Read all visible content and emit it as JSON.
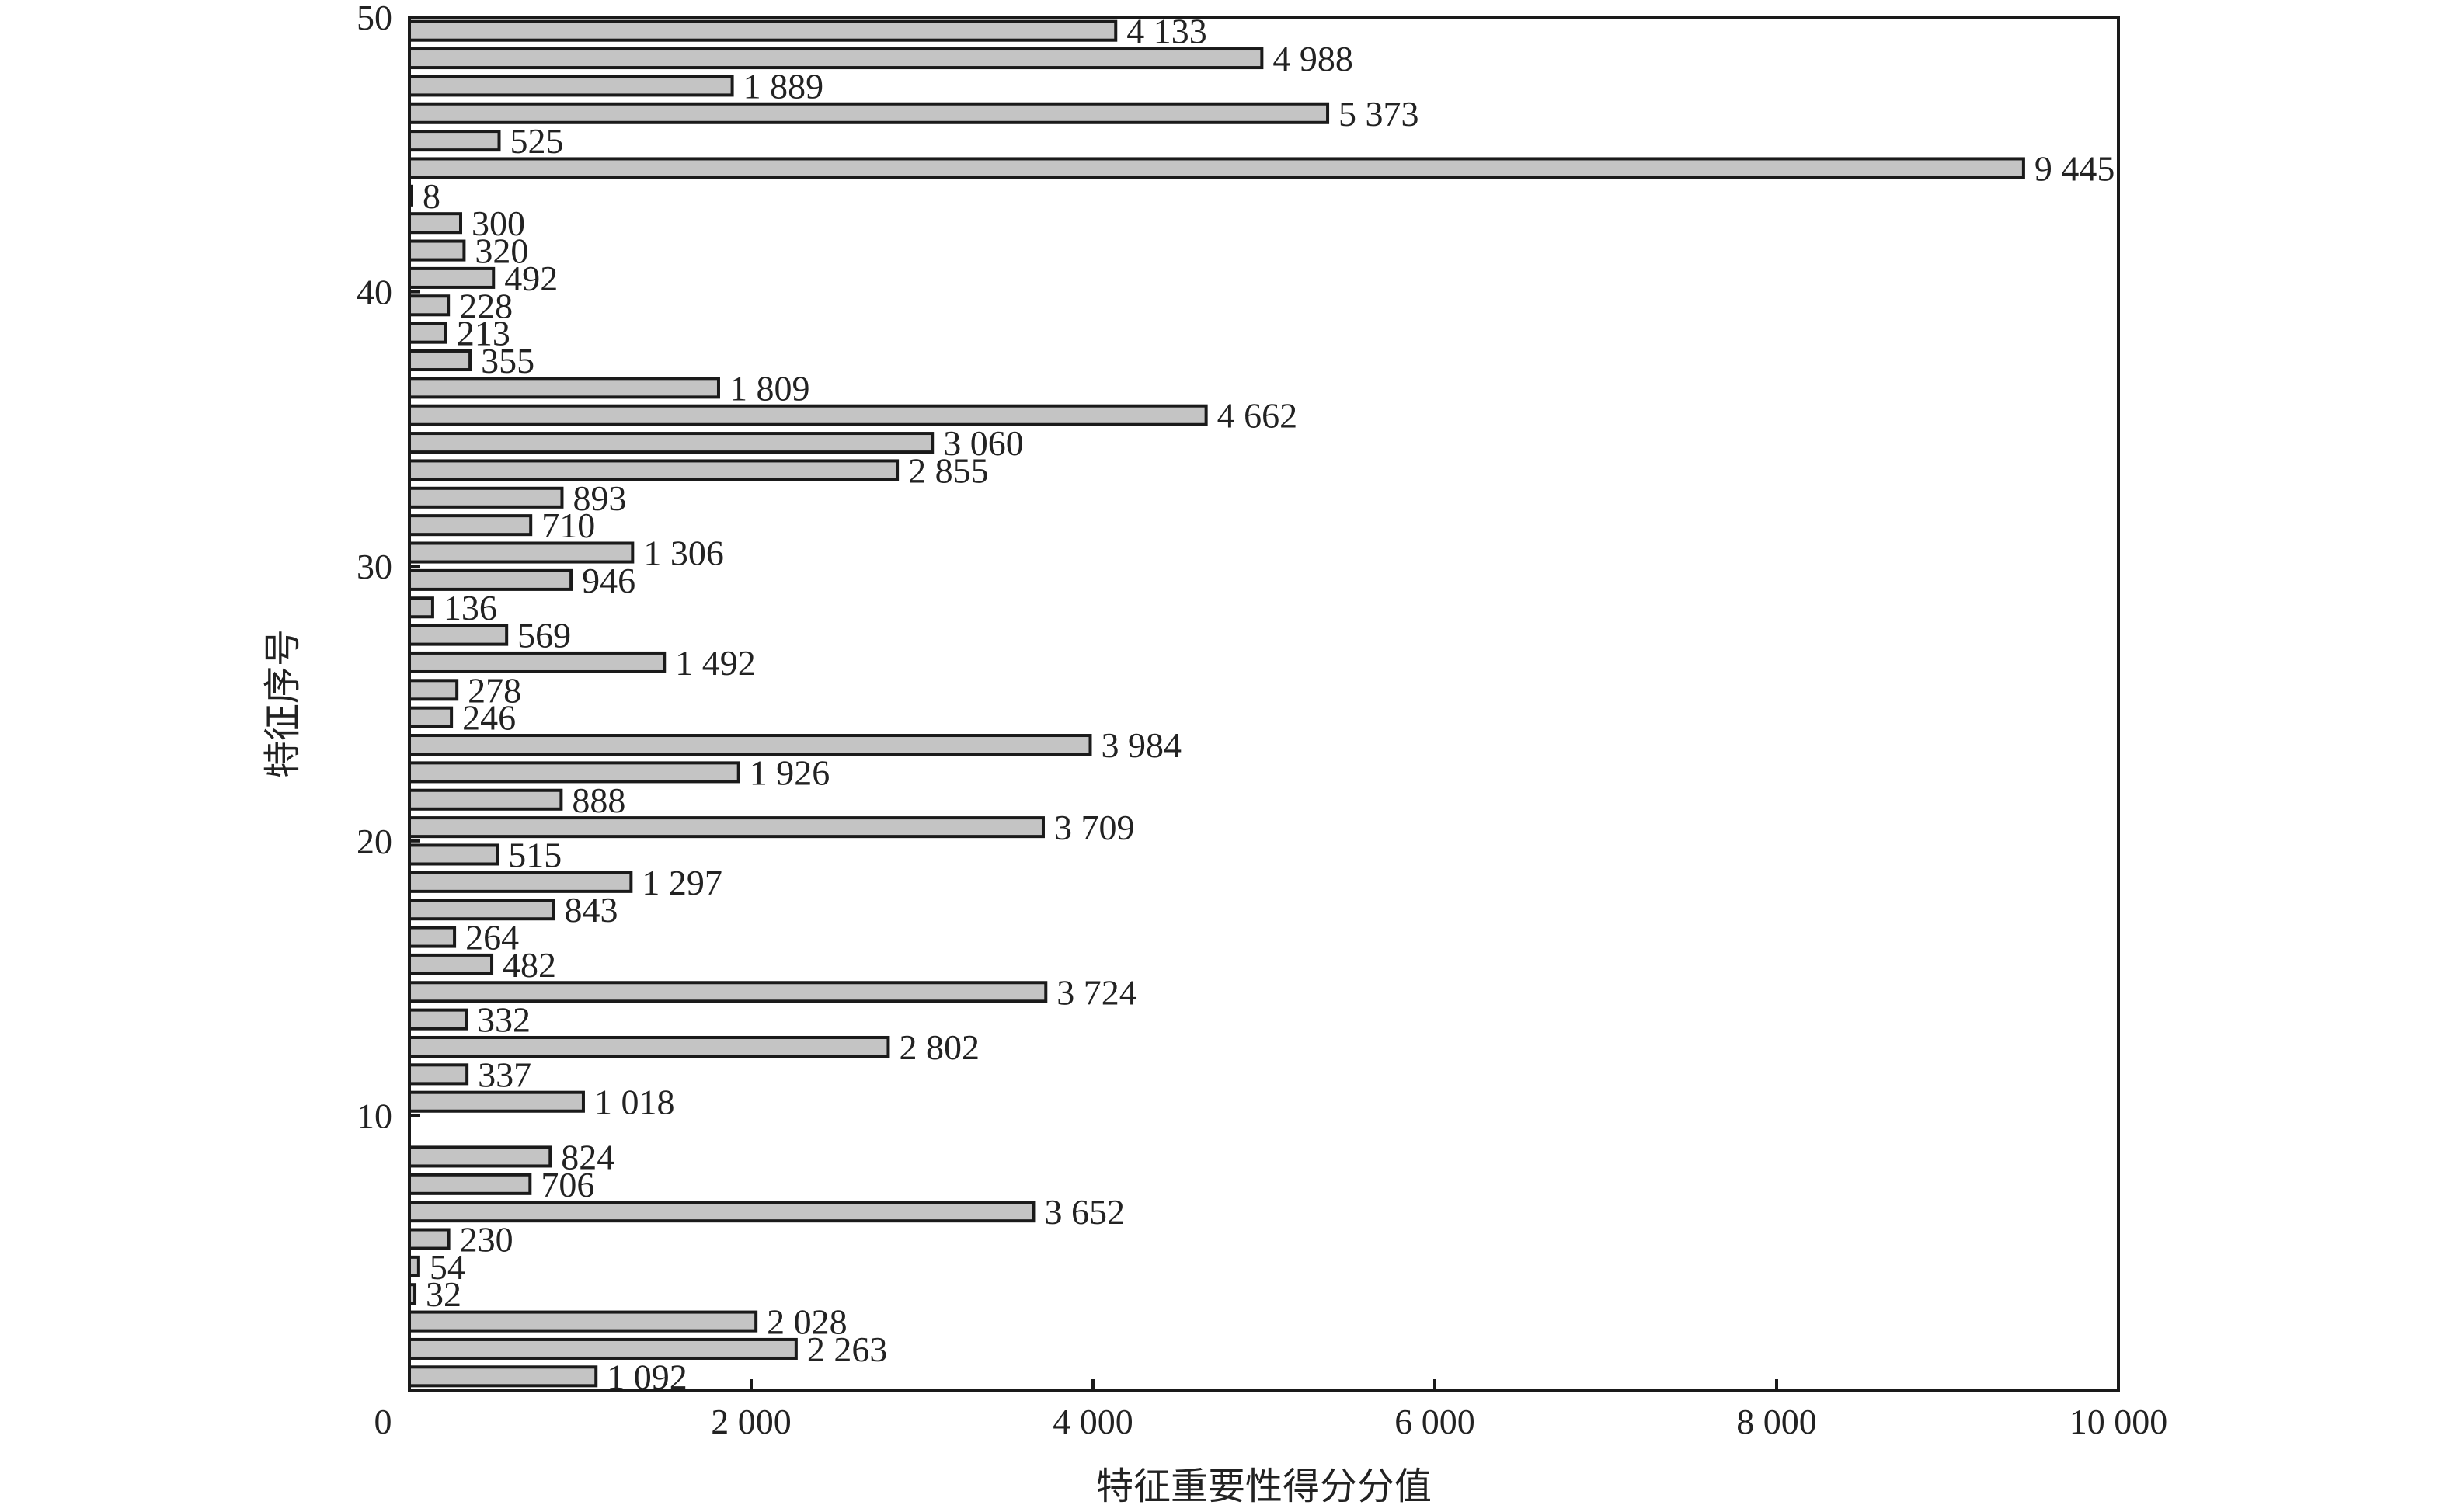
{
  "chart_data": {
    "type": "bar",
    "orientation": "horizontal",
    "xlabel": "特征重要性得分分值",
    "ylabel": "特征序号",
    "xlim": [
      0,
      10000
    ],
    "ylim": [
      0,
      50
    ],
    "x_ticks": [
      0,
      2000,
      4000,
      6000,
      8000,
      10000
    ],
    "x_tick_labels": [
      "0",
      "2 000",
      "4 000",
      "6 000",
      "8 000",
      "10 000"
    ],
    "y_ticks": [
      10,
      20,
      30,
      40,
      50
    ],
    "y_tick_labels": [
      "10",
      "20",
      "30",
      "40",
      "50"
    ],
    "grid": false,
    "bar_color": "#c4c4c4",
    "bars": [
      {
        "feature": 0,
        "value": 1092,
        "label": "1 092"
      },
      {
        "feature": 1,
        "value": 2263,
        "label": "2 263"
      },
      {
        "feature": 2,
        "value": 2028,
        "label": "2 028"
      },
      {
        "feature": 3,
        "value": 32,
        "label": "32"
      },
      {
        "feature": 4,
        "value": 54,
        "label": "54"
      },
      {
        "feature": 5,
        "value": 230,
        "label": "230"
      },
      {
        "feature": 6,
        "value": 3652,
        "label": "3 652"
      },
      {
        "feature": 7,
        "value": 706,
        "label": "706"
      },
      {
        "feature": 8,
        "value": 824,
        "label": "824"
      },
      {
        "feature": 10,
        "value": 1018,
        "label": "1 018"
      },
      {
        "feature": 11,
        "value": 337,
        "label": "337"
      },
      {
        "feature": 12,
        "value": 2802,
        "label": "2 802"
      },
      {
        "feature": 13,
        "value": 332,
        "label": "332"
      },
      {
        "feature": 14,
        "value": 3724,
        "label": "3 724"
      },
      {
        "feature": 15,
        "value": 482,
        "label": "482"
      },
      {
        "feature": 16,
        "value": 264,
        "label": "264"
      },
      {
        "feature": 17,
        "value": 843,
        "label": "843"
      },
      {
        "feature": 18,
        "value": 1297,
        "label": "1 297"
      },
      {
        "feature": 19,
        "value": 515,
        "label": "515"
      },
      {
        "feature": 20,
        "value": 3709,
        "label": "3 709"
      },
      {
        "feature": 21,
        "value": 888,
        "label": "888"
      },
      {
        "feature": 22,
        "value": 1926,
        "label": "1 926"
      },
      {
        "feature": 23,
        "value": 3984,
        "label": "3 984"
      },
      {
        "feature": 24,
        "value": 246,
        "label": "246"
      },
      {
        "feature": 25,
        "value": 278,
        "label": "278"
      },
      {
        "feature": 26,
        "value": 1492,
        "label": "1 492"
      },
      {
        "feature": 27,
        "value": 569,
        "label": "569"
      },
      {
        "feature": 28,
        "value": 136,
        "label": "136"
      },
      {
        "feature": 29,
        "value": 946,
        "label": "946"
      },
      {
        "feature": 30,
        "value": 1306,
        "label": "1 306"
      },
      {
        "feature": 31,
        "value": 710,
        "label": "710"
      },
      {
        "feature": 32,
        "value": 893,
        "label": "893"
      },
      {
        "feature": 33,
        "value": 2855,
        "label": "2 855"
      },
      {
        "feature": 34,
        "value": 3060,
        "label": "3 060"
      },
      {
        "feature": 35,
        "value": 4662,
        "label": "4 662"
      },
      {
        "feature": 36,
        "value": 1809,
        "label": "1 809"
      },
      {
        "feature": 37,
        "value": 355,
        "label": "355"
      },
      {
        "feature": 38,
        "value": 213,
        "label": "213"
      },
      {
        "feature": 39,
        "value": 228,
        "label": "228"
      },
      {
        "feature": 40,
        "value": 492,
        "label": "492"
      },
      {
        "feature": 41,
        "value": 320,
        "label": "320"
      },
      {
        "feature": 42,
        "value": 300,
        "label": "300"
      },
      {
        "feature": 43,
        "value": 8,
        "label": "8"
      },
      {
        "feature": 44,
        "value": 9445,
        "label": "9 445"
      },
      {
        "feature": 45,
        "value": 525,
        "label": "525"
      },
      {
        "feature": 46,
        "value": 5373,
        "label": "5 373"
      },
      {
        "feature": 47,
        "value": 1889,
        "label": "1 889"
      },
      {
        "feature": 48,
        "value": 4988,
        "label": "4 988"
      },
      {
        "feature": 49,
        "value": 4133,
        "label": "4 133"
      }
    ]
  }
}
